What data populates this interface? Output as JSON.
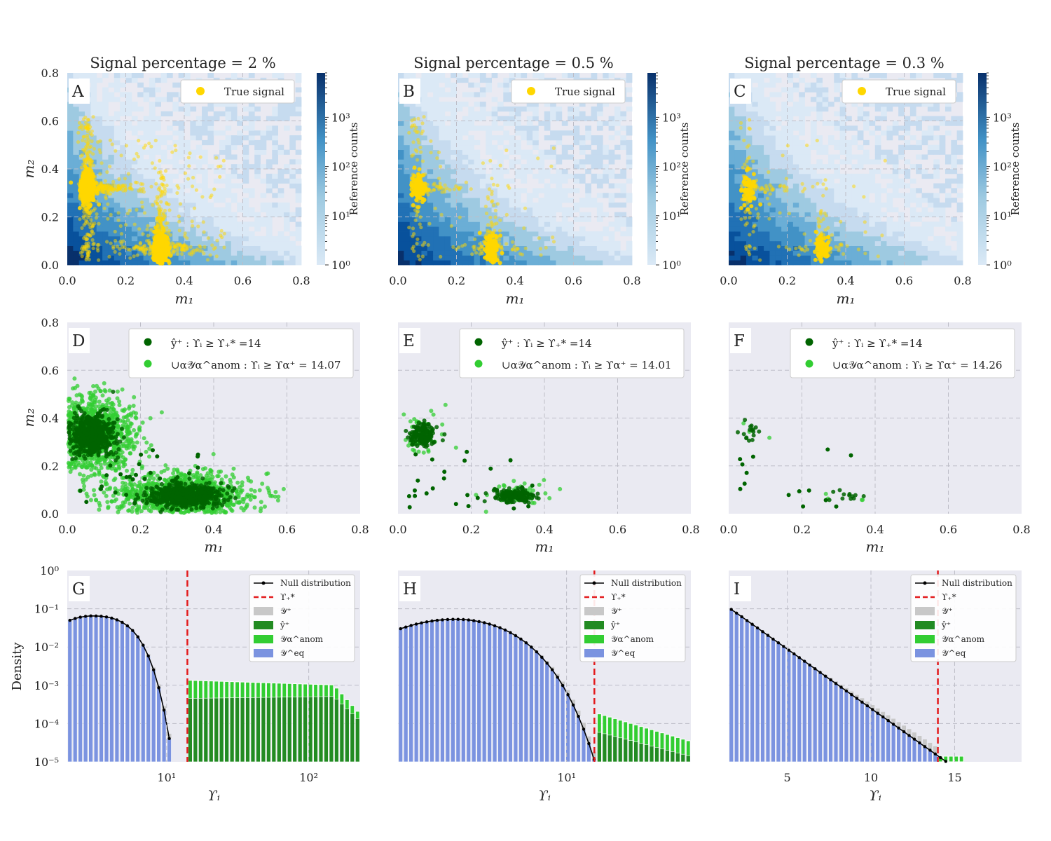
{
  "figure": {
    "top_row": {
      "titles": [
        "Signal percentage = 2 %",
        "Signal percentage = 0.5 %",
        "Signal percentage = 0.3 %"
      ],
      "letters": [
        "A",
        "B",
        "C"
      ],
      "xlabel": "m₁",
      "ylabel": "m₂",
      "legend": "True signal",
      "colorbar_label": "Reference counts",
      "colorbar_ticks": [
        "10⁰",
        "10¹",
        "10²",
        "10³"
      ],
      "xticks": [
        "0.0",
        "0.2",
        "0.4",
        "0.6",
        "0.8"
      ],
      "yticks": [
        "0.0",
        "0.2",
        "0.4",
        "0.6",
        "0.8"
      ]
    },
    "middle_row": {
      "letters": [
        "D",
        "E",
        "F"
      ],
      "xlabel": "m₁",
      "ylabel": "m₂",
      "legend_dark": "ŷ⁺ :  ϒᵢ ≥ ϒ₊* =14",
      "legend_light": [
        "∪α𝒴α^anom :  ϒᵢ ≥ ϒα⁺ = 14.07",
        "∪α𝒴α^anom :  ϒᵢ ≥ ϒα⁺ = 14.01",
        "∪α𝒴α^anom :  ϒᵢ ≥ ϒα⁺ = 14.26"
      ],
      "xticks": [
        "0.0",
        "0.2",
        "0.4",
        "0.6",
        "0.8"
      ],
      "yticks": [
        "0.0",
        "0.2",
        "0.4",
        "0.6",
        "0.8"
      ]
    },
    "bottom_row": {
      "letters": [
        "G",
        "H",
        "I"
      ],
      "xlabel": "ϒᵢ",
      "ylabel": "Density",
      "yticks": [
        "10⁰",
        "10⁻¹",
        "10⁻²",
        "10⁻³",
        "10⁻⁴",
        "10⁻⁵"
      ],
      "xticks_G": [
        "10¹",
        "10²"
      ],
      "xticks_H": [
        "10¹"
      ],
      "xticks_I": [
        "5",
        "10",
        "15"
      ],
      "legend": [
        "Null distribution",
        "ϒ₊*",
        "𝒴⁺",
        "ŷ⁺",
        "𝒴α^anom",
        "𝒴^eq"
      ]
    }
  },
  "colors": {
    "axes_bg": "#eaeaf2",
    "signal": "#ffd700",
    "dark_green": "#006400",
    "light_green": "#32cd32",
    "eq_blue": "#7b93e0",
    "grey": "#c8c8c8",
    "red": "#e31a1c"
  },
  "chart_data": [
    {
      "panel": "A",
      "type": "heatmap+scatter",
      "title": "Signal percentage = 2 %",
      "xlabel": "m1",
      "ylabel": "m2",
      "xlim": [
        0,
        0.8
      ],
      "ylim": [
        0,
        0.8
      ],
      "colorbar": {
        "label": "Reference counts",
        "scale": "log",
        "range": [
          1,
          8000
        ]
      },
      "signal_clusters": [
        {
          "m1": 0.07,
          "m2": 0.32,
          "spread": "vertical+horizontal arms"
        },
        {
          "m1": 0.32,
          "m2": 0.07,
          "spread": "vertical+horizontal arms"
        }
      ],
      "legend": [
        "True signal"
      ]
    },
    {
      "panel": "B",
      "type": "heatmap+scatter",
      "title": "Signal percentage = 0.5 %",
      "xlabel": "m1",
      "ylabel": "m2",
      "xlim": [
        0,
        0.8
      ],
      "ylim": [
        0,
        0.8
      ],
      "colorbar": {
        "label": "Reference counts",
        "scale": "log",
        "range": [
          1,
          8000
        ]
      },
      "signal_clusters": [
        {
          "m1": 0.07,
          "m2": 0.32
        },
        {
          "m1": 0.32,
          "m2": 0.07
        }
      ],
      "legend": [
        "True signal"
      ]
    },
    {
      "panel": "C",
      "type": "heatmap+scatter",
      "title": "Signal percentage = 0.3 %",
      "xlabel": "m1",
      "ylabel": "m2",
      "xlim": [
        0,
        0.8
      ],
      "ylim": [
        0,
        0.8
      ],
      "colorbar": {
        "label": "Reference counts",
        "scale": "log",
        "range": [
          1,
          8000
        ]
      },
      "signal_clusters": [
        {
          "m1": 0.07,
          "m2": 0.32
        },
        {
          "m1": 0.32,
          "m2": 0.07
        }
      ],
      "legend": [
        "True signal"
      ]
    },
    {
      "panel": "D",
      "type": "scatter",
      "xlabel": "m1",
      "ylabel": "m2",
      "xlim": [
        0,
        0.8
      ],
      "ylim": [
        0,
        0.8
      ],
      "threshold_dark": 14,
      "threshold_light": 14.07,
      "clusters": [
        {
          "m1": 0.065,
          "m2": 0.33
        },
        {
          "m1": 0.32,
          "m2": 0.075
        }
      ]
    },
    {
      "panel": "E",
      "type": "scatter",
      "xlabel": "m1",
      "ylabel": "m2",
      "xlim": [
        0,
        0.8
      ],
      "ylim": [
        0,
        0.8
      ],
      "threshold_dark": 14,
      "threshold_light": 14.01,
      "clusters": [
        {
          "m1": 0.065,
          "m2": 0.33
        },
        {
          "m1": 0.32,
          "m2": 0.07
        }
      ]
    },
    {
      "panel": "F",
      "type": "scatter",
      "xlabel": "m1",
      "ylabel": "m2",
      "xlim": [
        0,
        0.8
      ],
      "ylim": [
        0,
        0.8
      ],
      "threshold_dark": 14,
      "threshold_light": 14.26,
      "clusters": [
        {
          "m1": 0.07,
          "m2": 0.32
        },
        {
          "m1": 0.33,
          "m2": 0.07
        }
      ]
    },
    {
      "panel": "G",
      "type": "bar",
      "xscale": "log",
      "yscale": "log",
      "xlim": [
        2,
        230
      ],
      "ylim": [
        1e-05,
        1
      ],
      "xlabel": "Υi",
      "ylabel": "Density",
      "threshold": 14,
      "null_peak": {
        "x": 3,
        "y": 0.065
      },
      "tail_levels": {
        "light_green_at_20": 0.0013,
        "dark_green_at_100": 0.0006,
        "end_x": 210
      }
    },
    {
      "panel": "H",
      "type": "bar",
      "xscale": "log",
      "yscale": "log",
      "xlim": [
        1.3,
        45
      ],
      "ylim": [
        1e-05,
        1
      ],
      "xlabel": "Υi",
      "ylabel": "Density",
      "threshold": 14,
      "null_peak": {
        "x": 2.6,
        "y": 0.053
      },
      "tail_levels": {
        "light_green_at_16": 0.00015,
        "dark_green_at_20": 4e-05,
        "end_x": 43
      }
    },
    {
      "panel": "I",
      "type": "bar",
      "xscale": "linear",
      "yscale": "log",
      "xlim": [
        1.5,
        19
      ],
      "ylim": [
        1e-05,
        1
      ],
      "xlabel": "Υi",
      "ylabel": "Density",
      "threshold": 14,
      "null_start": {
        "x": 1.6,
        "y": 0.1
      },
      "null_end": {
        "x": 14.3,
        "y": 1e-05
      }
    }
  ]
}
